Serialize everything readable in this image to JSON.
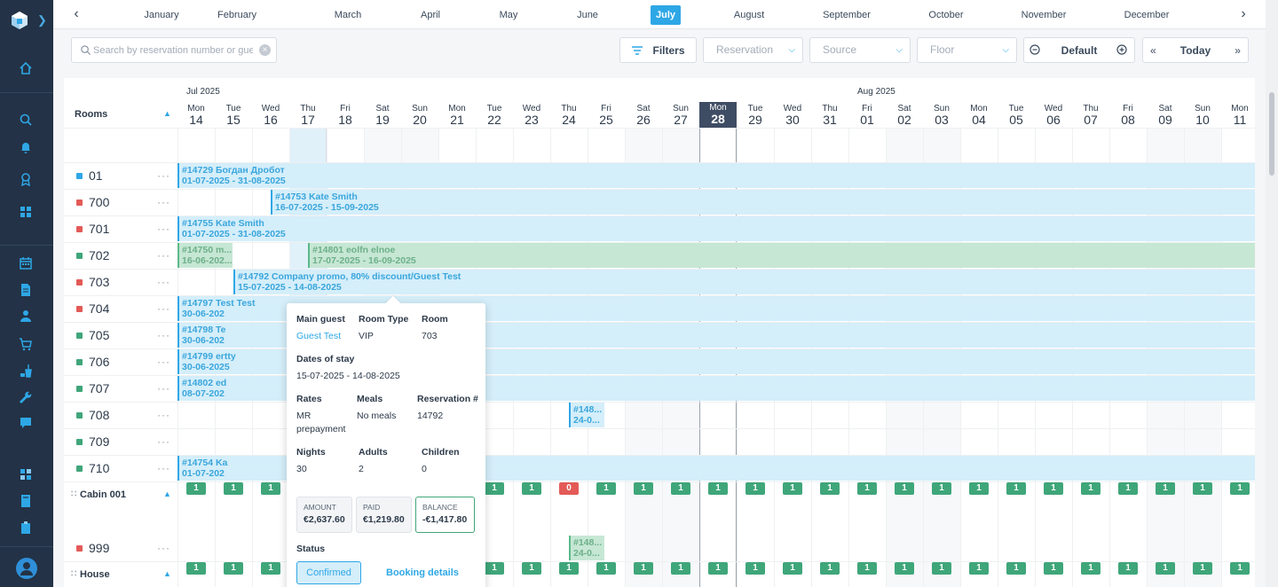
{
  "months": [
    "January",
    "February",
    "March",
    "April",
    "May",
    "June",
    "July",
    "August",
    "September",
    "October",
    "November",
    "December"
  ],
  "active_month": "July",
  "toolbar": {
    "search_placeholder": "Search by reservation number or guest",
    "filters_label": "Filters",
    "reservation_placeholder": "Reservation",
    "source_placeholder": "Source",
    "floor_placeholder": "Floor",
    "zoom_label": "Default",
    "today_label": "Today"
  },
  "grid": {
    "rooms_header": "Rooms",
    "month_labels": [
      "Jul 2025",
      "Aug 2025"
    ],
    "days": [
      {
        "n": "Mon",
        "d": "14"
      },
      {
        "n": "Tue",
        "d": "15"
      },
      {
        "n": "Wed",
        "d": "16"
      },
      {
        "n": "Thu",
        "d": "17"
      },
      {
        "n": "Fri",
        "d": "18"
      },
      {
        "n": "Sat",
        "d": "19"
      },
      {
        "n": "Sun",
        "d": "20"
      },
      {
        "n": "Mon",
        "d": "21"
      },
      {
        "n": "Tue",
        "d": "22"
      },
      {
        "n": "Wed",
        "d": "23"
      },
      {
        "n": "Thu",
        "d": "24"
      },
      {
        "n": "Fri",
        "d": "25"
      },
      {
        "n": "Sat",
        "d": "26"
      },
      {
        "n": "Sun",
        "d": "27"
      },
      {
        "n": "Mon",
        "d": "28"
      },
      {
        "n": "Tue",
        "d": "29"
      },
      {
        "n": "Wed",
        "d": "30"
      },
      {
        "n": "Thu",
        "d": "31"
      },
      {
        "n": "Fri",
        "d": "01"
      },
      {
        "n": "Sat",
        "d": "02"
      },
      {
        "n": "Sun",
        "d": "03"
      },
      {
        "n": "Mon",
        "d": "04"
      },
      {
        "n": "Tue",
        "d": "05"
      },
      {
        "n": "Wed",
        "d": "06"
      },
      {
        "n": "Thu",
        "d": "07"
      },
      {
        "n": "Fri",
        "d": "08"
      },
      {
        "n": "Sat",
        "d": "09"
      },
      {
        "n": "Sun",
        "d": "10"
      },
      {
        "n": "Mon",
        "d": "11"
      }
    ],
    "rooms": [
      {
        "name": "01",
        "color": "#2ea7e6"
      },
      {
        "name": "700",
        "color": "#e35a57"
      },
      {
        "name": "701",
        "color": "#e35a57"
      },
      {
        "name": "702",
        "color": "#3fa67a"
      },
      {
        "name": "703",
        "color": "#e35a57"
      },
      {
        "name": "704",
        "color": "#e35a57"
      },
      {
        "name": "705",
        "color": "#3fa67a"
      },
      {
        "name": "706",
        "color": "#3fa67a"
      },
      {
        "name": "707",
        "color": "#3fa67a"
      },
      {
        "name": "708",
        "color": "#3fa67a"
      },
      {
        "name": "709",
        "color": "#3fa67a"
      },
      {
        "name": "710",
        "color": "#3fa67a"
      }
    ],
    "categories": [
      {
        "name": "Cabin 001"
      },
      {
        "name": "House"
      }
    ],
    "extra_room": {
      "name": "999",
      "color": "#e35a57"
    },
    "bookings": [
      {
        "l1": "#14729 Богдан Дробот",
        "l2": "01-07-2025 - 31-08-2025",
        "color": "blue"
      },
      {
        "l1": "#14753 Kate Smith",
        "l2": "16-07-2025 - 15-09-2025",
        "color": "blue"
      },
      {
        "l1": "#14755 Kate Smith",
        "l2": "01-07-2025 - 31-08-2025",
        "color": "blue"
      },
      {
        "l1": "#14750 m...",
        "l2": "16-06-202...",
        "color": "green"
      },
      {
        "l1": "#14801 eolfn elnoe",
        "l2": "17-07-2025 - 16-09-2025",
        "color": "green"
      },
      {
        "l1": "#14792 Company promo, 80% discount/Guest Test",
        "l2": "15-07-2025 - 14-08-2025",
        "color": "blue"
      },
      {
        "l1": "#14797 Test Test",
        "l2": "30-06-202",
        "color": "blue"
      },
      {
        "l1": "#14798 Te",
        "l2": "30-06-202",
        "color": "blue"
      },
      {
        "l1": "#14799 ertty",
        "l2": "30-06-2025",
        "color": "blue"
      },
      {
        "l1": "#14802 ed",
        "l2": "08-07-202",
        "color": "blue"
      },
      {
        "l1": "#148...",
        "l2": "24-0...",
        "color": "blue"
      },
      {
        "l1": "#14754 Ka",
        "l2": "01-07-202",
        "color": "blue"
      },
      {
        "l1": "#148...",
        "l2": "24-0...",
        "color": "green"
      }
    ],
    "avail_value": "1",
    "avail_red_value": "0"
  },
  "popup": {
    "main_guest_label": "Main guest",
    "main_guest_value": "Guest Test",
    "room_type_label": "Room Type",
    "room_type_value": "VIP",
    "room_label": "Room",
    "room_value": "703",
    "dates_label": "Dates of stay",
    "dates_value": "15-07-2025 - 14-08-2025",
    "rates_label": "Rates",
    "rates_value_1": "MR",
    "rates_value_2": "prepayment",
    "meals_label": "Meals",
    "meals_value": "No meals",
    "resno_label": "Reservation #",
    "resno_value": "14792",
    "nights_label": "Nights",
    "nights_value": "30",
    "adults_label": "Adults",
    "adults_value": "2",
    "children_label": "Children",
    "children_value": "0",
    "amount_label": "AMOUNT",
    "amount_value": "€2,637.60",
    "paid_label": "PAID",
    "paid_value": "€1,219.80",
    "balance_label": "BALANCE",
    "balance_value": "-€1,417.80",
    "status_label": "Status",
    "status_value": "Confirmed",
    "details_label": "Booking details"
  }
}
